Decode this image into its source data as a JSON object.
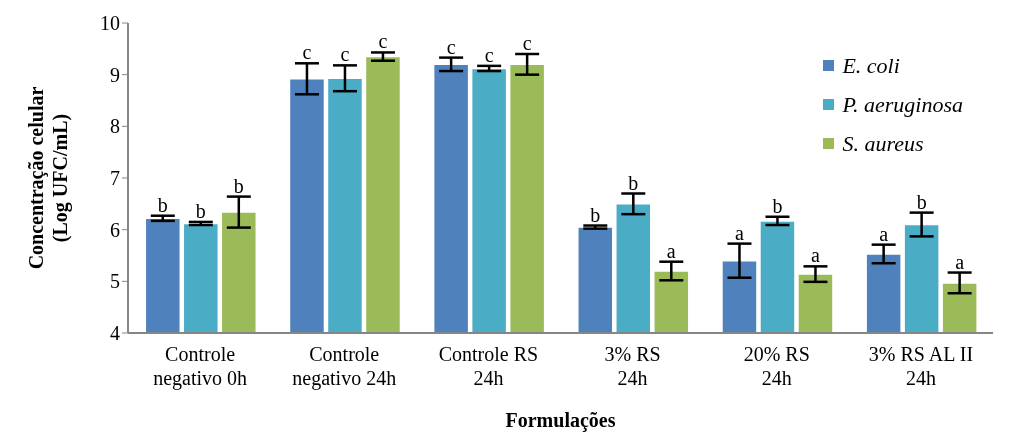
{
  "chart_data": {
    "type": "bar",
    "xlabel": "Formulações",
    "ylabel": "Concentração celular\n(Log UFC/mL)",
    "categories": [
      "Controle\nnegativo 0h",
      "Controle\nnegativo 24h",
      "Controle RS\n24h",
      "3% RS\n24h",
      "20% RS\n24h",
      "3% RS AL II\n24h"
    ],
    "series": [
      {
        "name": "E. coli",
        "color": "#4f81bd",
        "values": [
          6.22,
          8.92,
          9.2,
          6.05,
          5.4,
          5.53
        ],
        "errors": [
          0.05,
          0.3,
          0.13,
          0.03,
          0.33,
          0.18
        ],
        "value_labels": [
          "b",
          "c",
          "c",
          "b",
          "a",
          "a"
        ]
      },
      {
        "name": "P. aeruginosa",
        "color": "#4bacc6",
        "values": [
          6.12,
          8.93,
          9.12,
          6.5,
          6.17,
          6.1
        ],
        "errors": [
          0.03,
          0.25,
          0.05,
          0.2,
          0.08,
          0.23
        ],
        "value_labels": [
          "b",
          "c",
          "c",
          "b",
          "b",
          "b"
        ]
      },
      {
        "name": "S. aureus",
        "color": "#9bbb59",
        "values": [
          6.34,
          9.35,
          9.2,
          5.2,
          5.14,
          4.97
        ],
        "errors": [
          0.3,
          0.08,
          0.2,
          0.18,
          0.15,
          0.2
        ],
        "value_labels": [
          "b",
          "c",
          "c",
          "a",
          "a",
          "a"
        ]
      }
    ],
    "ylim": [
      4,
      10
    ],
    "yticks": [
      4,
      5,
      6,
      7,
      8,
      9,
      10
    ],
    "grid": false,
    "legend": "top right"
  }
}
